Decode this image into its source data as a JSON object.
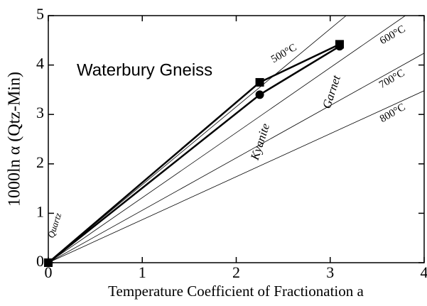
{
  "chart_data": {
    "type": "line",
    "annotation": "Waterbury Gneiss",
    "xlabel": "Temperature Coefficient of Fractionation a",
    "ylabel": "1000ln α (Qtz-Min)",
    "xlim": [
      0,
      4
    ],
    "ylim": [
      0,
      5
    ],
    "xticks": [
      0,
      1,
      2,
      3,
      4
    ],
    "yticks": [
      0,
      1,
      2,
      3,
      4,
      5
    ],
    "minerals": [
      {
        "label": "Quartz",
        "x": 0
      },
      {
        "label": "Kyanite",
        "x": 2.25
      },
      {
        "label": "Garnet",
        "x": 3.1
      }
    ],
    "isotherms": [
      {
        "label": "500°C",
        "x": [
          0,
          3.17
        ],
        "y": [
          0,
          5
        ]
      },
      {
        "label": "600°C",
        "x": [
          0,
          3.8
        ],
        "y": [
          0,
          5
        ]
      },
      {
        "label": "700°C",
        "x": [
          0,
          4
        ],
        "y": [
          0,
          4.24
        ]
      },
      {
        "label": "800°C",
        "x": [
          0,
          4
        ],
        "y": [
          0,
          3.48
        ]
      }
    ],
    "series": [
      {
        "marker": "square",
        "color": "#000000",
        "x": [
          0,
          2.25,
          3.1
        ],
        "values": [
          0,
          3.65,
          4.42
        ]
      },
      {
        "marker": "circle",
        "color": "#000000",
        "x": [
          0,
          2.25,
          3.1
        ],
        "values": [
          0,
          3.4,
          4.38
        ]
      }
    ]
  }
}
